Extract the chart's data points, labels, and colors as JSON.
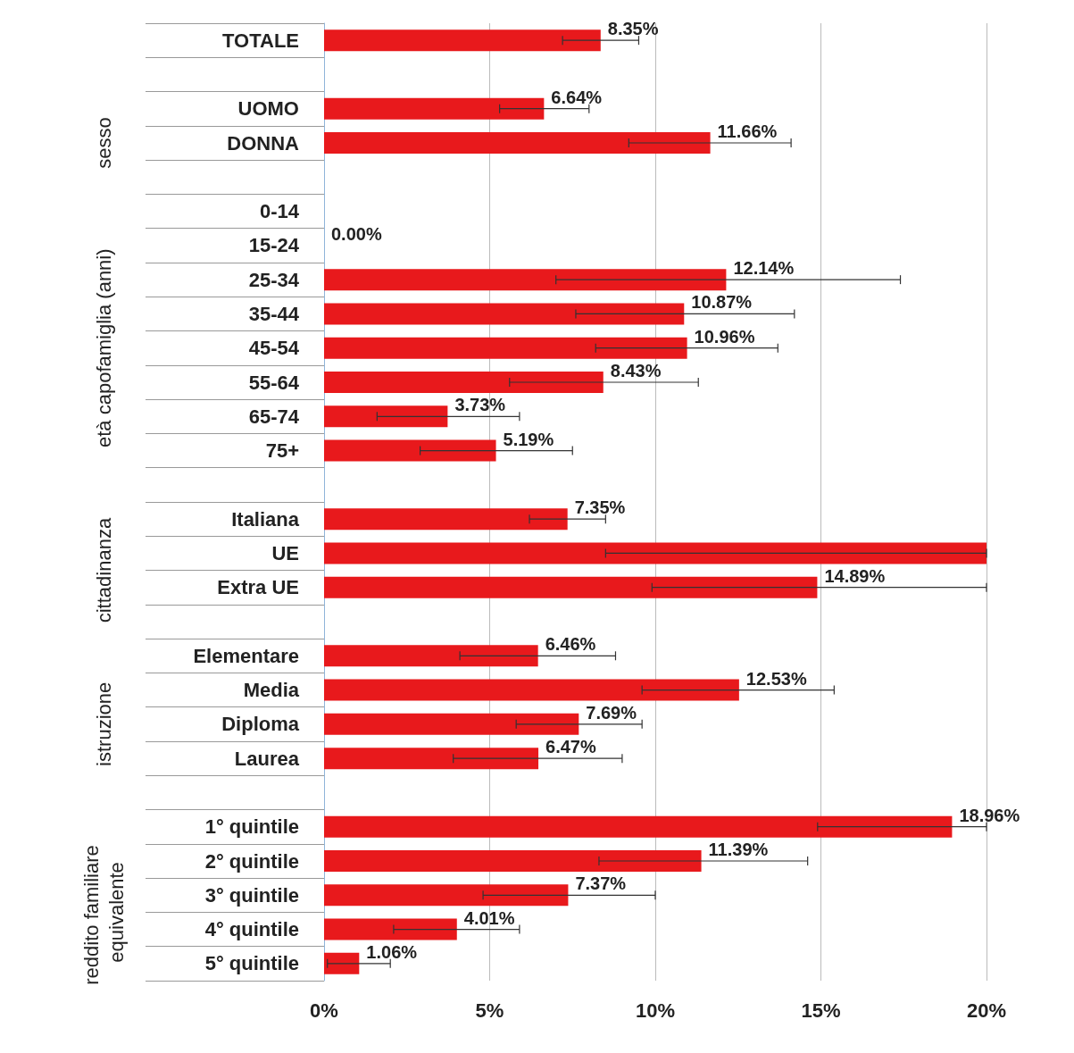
{
  "chart_data": {
    "type": "bar",
    "orientation": "horizontal",
    "categories": [
      "TOTALE",
      null,
      "UOMO",
      "DONNA",
      null,
      "0-14",
      "15-24",
      "25-34",
      "35-44",
      "45-54",
      "55-64",
      "65-74",
      "75+",
      null,
      "Italiana",
      "UE",
      "Extra UE",
      null,
      "Elementare",
      "Media",
      "Diploma",
      "Laurea",
      null,
      "1° quintile",
      "2° quintile",
      "3° quintile",
      "4° quintile",
      "5° quintile"
    ],
    "values": [
      8.35,
      null,
      6.64,
      11.66,
      null,
      null,
      0,
      12.14,
      10.87,
      10.96,
      8.43,
      3.73,
      5.19,
      null,
      7.35,
      20,
      14.89,
      null,
      6.46,
      12.53,
      7.69,
      6.47,
      null,
      18.96,
      11.39,
      7.37,
      4.01,
      1.06
    ],
    "value_labels": [
      "8.35%",
      null,
      "6.64%",
      "11.66%",
      null,
      null,
      "0.00%",
      "12.14%",
      "10.87%",
      "10.96%",
      "8.43%",
      "3.73%",
      "5.19%",
      null,
      "7.35%",
      null,
      "14.89%",
      null,
      "6.46%",
      "12.53%",
      "7.69%",
      "6.47%",
      null,
      "18.96%",
      "11.39%",
      "7.37%",
      "4.01%",
      "1.06%"
    ],
    "errors": [
      [
        7.2,
        9.5
      ],
      null,
      [
        5.3,
        8.0
      ],
      [
        9.2,
        14.1
      ],
      null,
      null,
      null,
      [
        7.0,
        17.4
      ],
      [
        7.6,
        14.2
      ],
      [
        8.2,
        13.7
      ],
      [
        5.6,
        11.3
      ],
      [
        1.6,
        5.9
      ],
      [
        2.9,
        7.5
      ],
      null,
      [
        6.2,
        8.5
      ],
      [
        8.5,
        20
      ],
      [
        9.9,
        20
      ],
      null,
      [
        4.1,
        8.8
      ],
      [
        9.6,
        15.4
      ],
      [
        5.8,
        9.6
      ],
      [
        3.9,
        9.0
      ],
      null,
      [
        14.9,
        20
      ],
      [
        8.3,
        14.6
      ],
      [
        4.8,
        10.0
      ],
      [
        2.1,
        5.9
      ],
      [
        0.1,
        2.0
      ]
    ],
    "color": "#e8191c",
    "xlim": [
      0,
      20
    ],
    "xticks": [
      {
        "value": 0,
        "label": "0%"
      },
      {
        "value": 5,
        "label": "5%"
      },
      {
        "value": 10,
        "label": "10%"
      },
      {
        "value": 15,
        "label": "15%"
      },
      {
        "value": 20,
        "label": "20%"
      }
    ],
    "grid": "x",
    "annotations": [
      "sesso",
      "età capofamiglia (anni)",
      "cittadinanza",
      "istruzione",
      "reddito familiare equivalente"
    ]
  }
}
